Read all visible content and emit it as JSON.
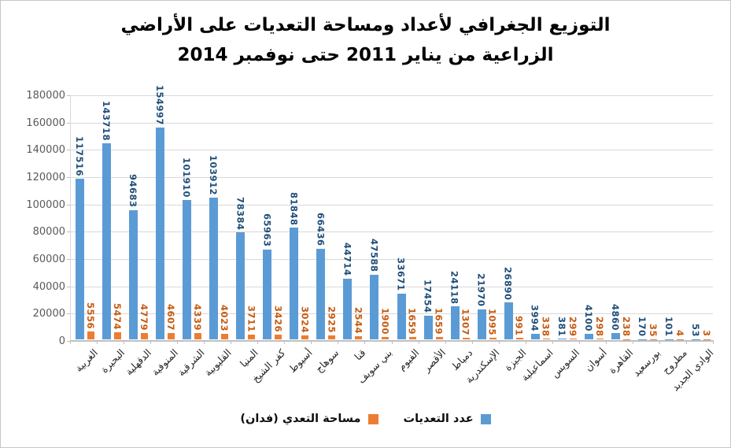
{
  "title": {
    "line1": "التوزيع الجغرافي لأعداد ومساحة التعديات على الأراضي",
    "line2": "الزراعية من يناير 2011 حتى نوفمبر 2014"
  },
  "chart_data": {
    "type": "bar",
    "title": "التوزيع الجغرافي لأعداد ومساحة التعديات على الأراضي الزراعية من يناير 2011 حتى نوفمبر 2014",
    "categories": [
      "الغربية",
      "البحيرة",
      "الدقهلية",
      "المنوفية",
      "الشرقية",
      "القليوبية",
      "المنيا",
      "كفر الشيخ",
      "أسيوط",
      "سوهاج",
      "قنا",
      "بني سويف",
      "الفيوم",
      "الأقصر",
      "دمياط",
      "الإسكندرية",
      "الجيزة",
      "اسماعيلية",
      "السويس",
      "أسوان",
      "القاهرة",
      "بورسعيد",
      "مطروح",
      "الوادي الجديد"
    ],
    "series": [
      {
        "name": "عدد التعديات",
        "color": "#5b9bd5",
        "label_color": "#1f4e79",
        "values": [
          117516,
          143718,
          94683,
          154997,
          101910,
          103912,
          78384,
          65963,
          81848,
          66436,
          44714,
          47588,
          33671,
          17454,
          24118,
          21970,
          26890,
          3994,
          381,
          4100,
          4860,
          170,
          101,
          53
        ]
      },
      {
        "name": "مساحة التعدي (فدان)",
        "color": "#ed7d31",
        "label_color": "#c55a11",
        "values": [
          5556,
          5474,
          4779,
          4607,
          4339,
          4023,
          3711,
          3426,
          3024,
          2925,
          2544,
          1900,
          1659,
          1659,
          1307,
          1095,
          991,
          338,
          299,
          298,
          238,
          35,
          4,
          3
        ]
      }
    ],
    "ylim": [
      0,
      180000
    ],
    "yticks": [
      0,
      20000,
      40000,
      60000,
      80000,
      100000,
      120000,
      140000,
      160000,
      180000
    ],
    "grid": true,
    "data_labels": "rotated-vertical",
    "category_label_rotation_deg": 45,
    "legend_position": "bottom",
    "legend_order_ltr": [
      "مساحة التعدي (فدان)",
      "عدد التعديات"
    ]
  },
  "colors": {
    "count_bar": "#5b9bd5",
    "area_bar": "#ed7d31",
    "count_label": "#1f4e79",
    "area_label": "#c55a11",
    "axis_text": "#595959",
    "gridline": "#d9d9d9",
    "axis_line": "#bfbfbf"
  },
  "legend": {
    "entries": [
      {
        "label": "مساحة التعدي (فدان)",
        "color": "#ed7d31",
        "series": "area"
      },
      {
        "label": "عدد التعديات",
        "color": "#5b9bd5",
        "series": "count"
      }
    ]
  }
}
